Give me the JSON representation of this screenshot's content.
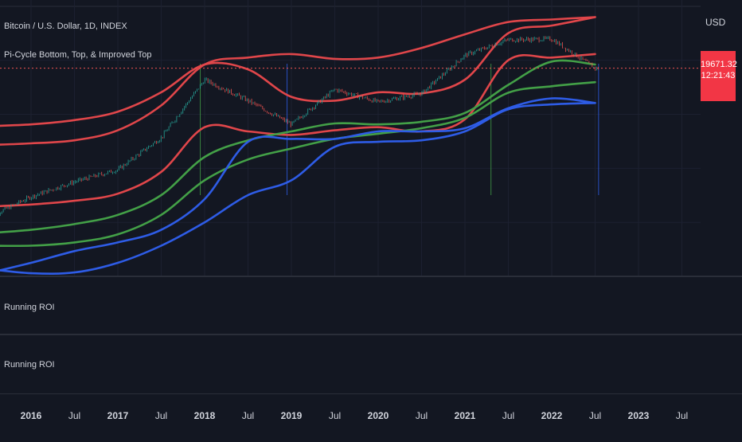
{
  "header": {
    "title": "Bitcoin / U.S. Dollar, 1D, INDEX",
    "indicator": "Pi-Cycle Bottom, Top, & Improved Top"
  },
  "price_scale": {
    "currency": "USD",
    "last_price": "19671.32",
    "countdown": "12:21:43"
  },
  "panes": [
    {
      "label": "Running ROI"
    },
    {
      "label": "Running ROI"
    }
  ],
  "colors": {
    "background": "#131722",
    "red_band": "#e0464a",
    "green_band": "#43a047",
    "blue_band": "#2e5ce6",
    "candle_up": "#26a69a",
    "candle_down": "#ef5350",
    "price_tag": "#f23645"
  },
  "chart_data": {
    "type": "line",
    "x_ticks": [
      "2016",
      "Jul",
      "2017",
      "Jul",
      "2018",
      "Jul",
      "2019",
      "Jul",
      "2020",
      "Jul",
      "2021",
      "Jul",
      "2022",
      "Jul",
      "2023",
      "Jul"
    ],
    "y_scale": "log",
    "x": [
      2015.5,
      2016.0,
      2016.5,
      2017.0,
      2017.5,
      2018.0,
      2018.5,
      2019.0,
      2019.5,
      2020.0,
      2020.5,
      2021.0,
      2021.5,
      2022.0,
      2022.5
    ],
    "series": [
      {
        "values": [
          230,
          430,
          670,
          960,
          2500,
          14000,
          7500,
          3700,
          10500,
          7200,
          9300,
          29000,
          46000,
          47000,
          19671
        ]
      },
      {
        "values": [
          320,
          340,
          380,
          470,
          900,
          3400,
          3000,
          2700,
          3100,
          3400,
          3000,
          4300,
          25000,
          27000,
          30000
        ]
      },
      {
        "values": [
          3500,
          3700,
          4200,
          5400,
          9600,
          22000,
          19000,
          8400,
          7500,
          9600,
          9300,
          14000,
          56000,
          70000,
          90000
        ]
      },
      {
        "values": [
          2000,
          2100,
          2300,
          3100,
          6500,
          22000,
          27000,
          30000,
          26000,
          27000,
          36000,
          54000,
          78000,
          84000,
          90000
        ]
      },
      {
        "values": [
          145,
          160,
          190,
          250,
          450,
          1400,
          2300,
          3000,
          3800,
          3700,
          4000,
          5200,
          12000,
          24000,
          22000
        ]
      },
      {
        "values": [
          100,
          100,
          110,
          140,
          250,
          700,
          1300,
          1800,
          2400,
          2800,
          3300,
          4500,
          9500,
          11500,
          13000
        ]
      },
      {
        "values": [
          44,
          60,
          85,
          110,
          160,
          400,
          2200,
          2400,
          2400,
          3000,
          3000,
          3300,
          6000,
          8000,
          7000
        ]
      },
      {
        "values": [
          50,
          44,
          45,
          60,
          100,
          200,
          450,
          700,
          1900,
          2200,
          2300,
          3000,
          5800,
          6700,
          7000
        ]
      }
    ],
    "signals": [
      {
        "date": 2017.95,
        "color": "green"
      },
      {
        "date": 2018.95,
        "color": "blue"
      },
      {
        "date": 2021.3,
        "color": "green"
      },
      {
        "date": 2022.54,
        "color": "blue"
      }
    ],
    "current_price": 19671.32,
    "grid": true
  }
}
